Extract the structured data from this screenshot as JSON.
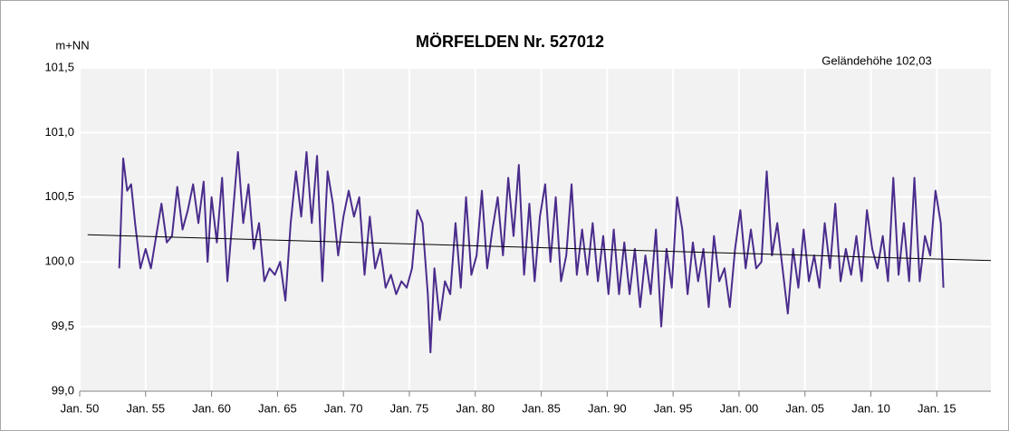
{
  "chart_data": {
    "type": "line",
    "title": "MÖRFELDEN  Nr. 527012",
    "y_label": "m+NN",
    "annotation": "Geländehöhe 102,03",
    "annotation_color": "#2e8b2e",
    "xlim": [
      1950,
      2019.1
    ],
    "ylim": [
      99,
      101.5
    ],
    "xticks": [
      {
        "value": 1950,
        "label": "Jan. 50"
      },
      {
        "value": 1955,
        "label": "Jan. 55"
      },
      {
        "value": 1960,
        "label": "Jan. 60"
      },
      {
        "value": 1965,
        "label": "Jan. 65"
      },
      {
        "value": 1970,
        "label": "Jan. 70"
      },
      {
        "value": 1975,
        "label": "Jan. 75"
      },
      {
        "value": 1980,
        "label": "Jan. 80"
      },
      {
        "value": 1985,
        "label": "Jan. 85"
      },
      {
        "value": 1990,
        "label": "Jan. 90"
      },
      {
        "value": 1995,
        "label": "Jan. 95"
      },
      {
        "value": 2000,
        "label": "Jan. 00"
      },
      {
        "value": 2005,
        "label": "Jan. 05"
      },
      {
        "value": 2010,
        "label": "Jan. 10"
      },
      {
        "value": 2015,
        "label": "Jan. 15"
      }
    ],
    "yticks": [
      {
        "value": 99,
        "label": "99,0"
      },
      {
        "value": 99.5,
        "label": "99,5"
      },
      {
        "value": 100,
        "label": "100,0"
      },
      {
        "value": 100.5,
        "label": "100,5"
      },
      {
        "value": 101,
        "label": "101,0"
      },
      {
        "value": 101.5,
        "label": "101,5"
      }
    ],
    "grid": true,
    "series": [
      {
        "color": "#4a2c8c",
        "x": [
          1953.0,
          1953.3,
          1953.6,
          1953.9,
          1954.2,
          1954.6,
          1955.0,
          1955.4,
          1955.8,
          1956.2,
          1956.6,
          1957.0,
          1957.4,
          1957.8,
          1958.2,
          1958.6,
          1959.0,
          1959.4,
          1959.7,
          1960.0,
          1960.4,
          1960.8,
          1961.2,
          1961.6,
          1962.0,
          1962.4,
          1962.8,
          1963.2,
          1963.6,
          1964.0,
          1964.4,
          1964.8,
          1965.2,
          1965.6,
          1966.0,
          1966.4,
          1966.8,
          1967.2,
          1967.6,
          1968.0,
          1968.4,
          1968.8,
          1969.2,
          1969.6,
          1970.0,
          1970.4,
          1970.8,
          1971.2,
          1971.6,
          1972.0,
          1972.4,
          1972.8,
          1973.2,
          1973.6,
          1974.0,
          1974.4,
          1974.8,
          1975.2,
          1975.6,
          1976.0,
          1976.4,
          1976.6,
          1976.9,
          1977.3,
          1977.7,
          1978.1,
          1978.5,
          1978.9,
          1979.3,
          1979.7,
          1980.1,
          1980.5,
          1980.9,
          1981.3,
          1981.7,
          1982.1,
          1982.5,
          1982.9,
          1983.3,
          1983.7,
          1984.1,
          1984.5,
          1984.9,
          1985.3,
          1985.7,
          1986.1,
          1986.5,
          1986.9,
          1987.3,
          1987.7,
          1988.1,
          1988.5,
          1988.9,
          1989.3,
          1989.7,
          1990.1,
          1990.5,
          1990.9,
          1991.3,
          1991.7,
          1992.1,
          1992.5,
          1992.9,
          1993.3,
          1993.7,
          1994.1,
          1994.5,
          1994.9,
          1995.3,
          1995.7,
          1996.1,
          1996.5,
          1996.9,
          1997.3,
          1997.7,
          1998.1,
          1998.5,
          1998.9,
          1999.3,
          1999.7,
          2000.1,
          2000.5,
          2000.9,
          2001.3,
          2001.7,
          2002.1,
          2002.5,
          2002.9,
          2003.3,
          2003.7,
          2004.1,
          2004.5,
          2004.9,
          2005.3,
          2005.7,
          2006.1,
          2006.5,
          2006.9,
          2007.3,
          2007.7,
          2008.1,
          2008.5,
          2008.9,
          2009.3,
          2009.7,
          2010.1,
          2010.5,
          2010.9,
          2011.3,
          2011.7,
          2012.1,
          2012.5,
          2012.9,
          2013.3,
          2013.7,
          2014.1,
          2014.5,
          2014.9,
          2015.3,
          2015.5
        ],
        "values": [
          99.95,
          100.8,
          100.55,
          100.6,
          100.3,
          99.95,
          100.1,
          99.95,
          100.2,
          100.45,
          100.15,
          100.2,
          100.58,
          100.25,
          100.4,
          100.6,
          100.3,
          100.62,
          100.0,
          100.5,
          100.15,
          100.65,
          99.85,
          100.35,
          100.85,
          100.3,
          100.6,
          100.1,
          100.3,
          99.85,
          99.95,
          99.9,
          100.0,
          99.7,
          100.3,
          100.7,
          100.35,
          100.85,
          100.3,
          100.82,
          99.85,
          100.7,
          100.45,
          100.05,
          100.35,
          100.55,
          100.35,
          100.5,
          99.9,
          100.35,
          99.95,
          100.1,
          99.8,
          99.9,
          99.75,
          99.85,
          99.8,
          99.95,
          100.4,
          100.3,
          99.75,
          99.3,
          99.95,
          99.55,
          99.85,
          99.75,
          100.3,
          99.8,
          100.5,
          99.9,
          100.05,
          100.55,
          99.95,
          100.25,
          100.5,
          100.05,
          100.65,
          100.2,
          100.75,
          99.9,
          100.45,
          99.85,
          100.35,
          100.6,
          100.0,
          100.5,
          99.85,
          100.05,
          100.6,
          99.9,
          100.25,
          99.9,
          100.3,
          99.85,
          100.2,
          99.75,
          100.25,
          99.75,
          100.15,
          99.75,
          100.1,
          99.65,
          100.05,
          99.75,
          100.25,
          99.5,
          100.1,
          99.8,
          100.5,
          100.25,
          99.75,
          100.15,
          99.85,
          100.1,
          99.65,
          100.2,
          99.85,
          99.95,
          99.65,
          100.1,
          100.4,
          99.95,
          100.25,
          99.95,
          100.0,
          100.7,
          100.05,
          100.3,
          99.95,
          99.6,
          100.1,
          99.8,
          100.25,
          99.85,
          100.05,
          99.8,
          100.3,
          99.95,
          100.45,
          99.85,
          100.1,
          99.9,
          100.2,
          99.85,
          100.4,
          100.1,
          99.95,
          100.2,
          99.85,
          100.65,
          99.9,
          100.3,
          99.85,
          100.65,
          99.85,
          100.2,
          100.05,
          100.55,
          100.3,
          99.8
        ]
      },
      {
        "color": "#000000",
        "x": [
          1950.6,
          2019.1
        ],
        "values": [
          100.21,
          100.01
        ]
      }
    ]
  }
}
